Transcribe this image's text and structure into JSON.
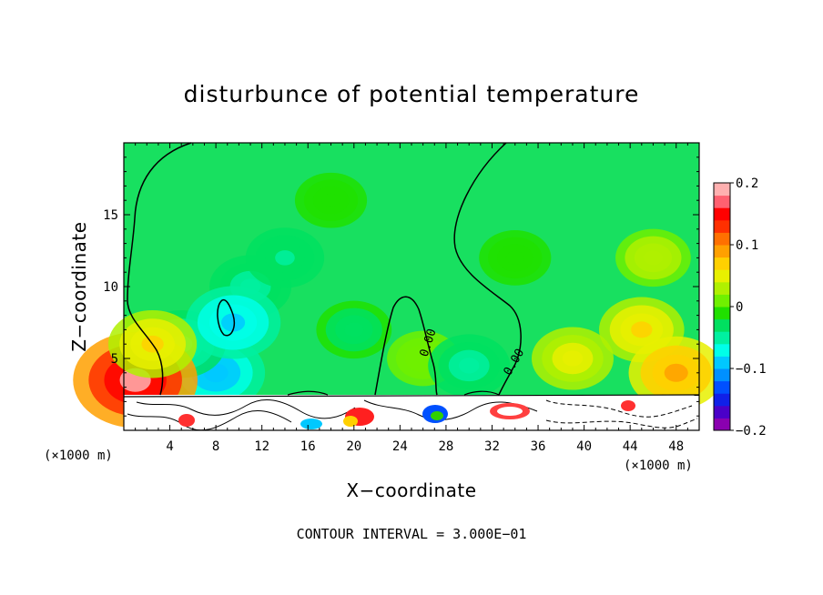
{
  "chart_data": {
    "type": "heatmap",
    "title": "disturbunce of potential temperature",
    "xlabel": "X−coordinate",
    "ylabel": "Z−coordinate",
    "x_unit": "(×1000 m)",
    "x_unit_right": "(×1000 m)",
    "xlim": [
      0,
      50
    ],
    "ylim": [
      0,
      20
    ],
    "x_ticks": [
      4,
      8,
      12,
      16,
      20,
      24,
      28,
      32,
      36,
      40,
      44,
      48
    ],
    "x_tick_labels": [
      "4",
      "8",
      "12",
      "16",
      "20",
      "24",
      "28",
      "32",
      "36",
      "40",
      "44",
      "48"
    ],
    "y_ticks": [
      5,
      10,
      15
    ],
    "y_tick_labels": [
      "5",
      "10",
      "15"
    ],
    "colorbar": {
      "min": -0.2,
      "max": 0.2,
      "ticks": [
        0.2,
        0.1,
        0,
        -0.1,
        -0.2
      ],
      "tick_labels": [
        "0.2",
        "0.1",
        "0",
        "−0.1",
        "−0.2"
      ],
      "colors": [
        "#8a00b0",
        "#4a00c8",
        "#1020e8",
        "#0050ff",
        "#0090ff",
        "#00c8ff",
        "#00ffe8",
        "#00f0a0",
        "#00e060",
        "#20e000",
        "#70f000",
        "#b0f000",
        "#e8f000",
        "#ffd000",
        "#ffa000",
        "#ff7000",
        "#ff3000",
        "#ff0000",
        "#ff6070",
        "#ffb0b0"
      ]
    },
    "contour_labels": [
      "0.00",
      "0.00"
    ],
    "contour_interval_text": "CONTOUR INTERVAL = 3.000E−01",
    "blobs": [
      {
        "x": 11,
        "z": 10,
        "value": -0.05
      },
      {
        "x": 8,
        "z": 4,
        "value": -0.1
      },
      {
        "x": 5,
        "z": 6,
        "value": -0.07
      },
      {
        "x": 9.5,
        "z": 7.5,
        "value": -0.09
      },
      {
        "x": 14,
        "z": 12,
        "value": -0.04
      },
      {
        "x": 20,
        "z": 7,
        "value": -0.03
      },
      {
        "x": 26,
        "z": 5,
        "value": 0.02
      },
      {
        "x": 30,
        "z": 4.5,
        "value": -0.05
      },
      {
        "x": 34,
        "z": 12,
        "value": -0.02
      },
      {
        "x": 39,
        "z": 5,
        "value": 0.05
      },
      {
        "x": 45,
        "z": 7,
        "value": 0.06
      },
      {
        "x": 46,
        "z": 12,
        "value": 0.03
      },
      {
        "x": 1,
        "z": 3.5,
        "value": 0.18
      },
      {
        "x": 2.5,
        "z": 6,
        "value": 0.07
      },
      {
        "x": 48,
        "z": 4,
        "value": 0.09
      },
      {
        "x": 18,
        "z": 16,
        "value": -0.02
      }
    ]
  },
  "footer": {
    "contour_interval": "CONTOUR INTERVAL = 3.000E−01"
  }
}
